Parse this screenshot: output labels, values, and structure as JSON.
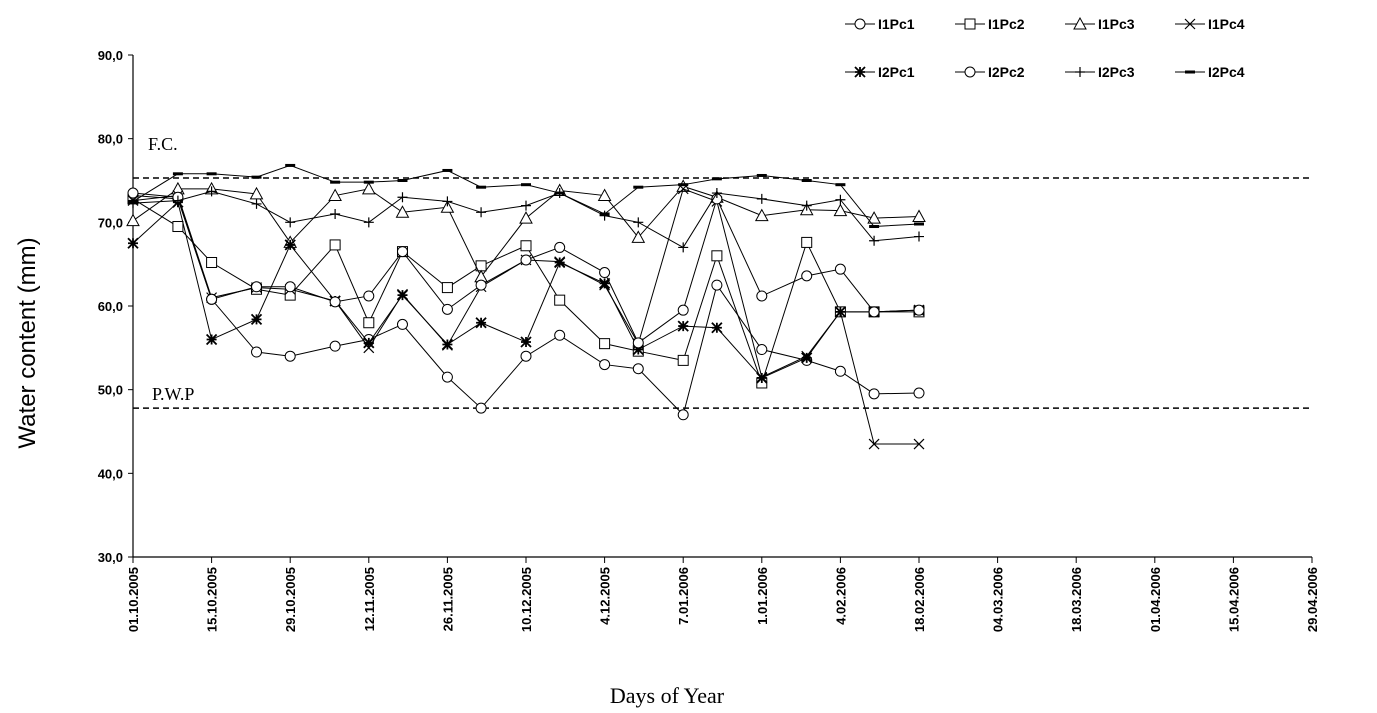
{
  "chart_data": {
    "type": "line",
    "title": "",
    "xlabel": "Days of Year",
    "ylabel": "Water content (mm)",
    "ylim": [
      30,
      90
    ],
    "yticks": [
      "30,0",
      "40,0",
      "50,0",
      "60,0",
      "70,0",
      "80,0",
      "90,0"
    ],
    "xticks": [
      "01.10.2005",
      "15.10.2005",
      "29.10.2005",
      "12.11.2005",
      "26.11.2005",
      "10.12.2005",
      "4.12.2005",
      "7.01.2006",
      "1.01.2006",
      "4.02.2006",
      "18.02.2006",
      "04.03.2006",
      "18.03.2006",
      "01.04.2006",
      "15.04.2006",
      "29.04.2006"
    ],
    "x_range_days": [
      0,
      210
    ],
    "x": [
      0,
      8,
      14,
      22,
      28,
      36,
      42,
      48,
      56,
      62,
      70,
      76,
      84,
      90,
      98,
      104,
      112,
      120,
      126,
      132,
      140,
      147,
      153,
      161,
      168,
      176,
      182
    ],
    "grid": false,
    "legend_position": "top-right",
    "reference_lines": [
      {
        "label": "F.C.",
        "value": 75.3
      },
      {
        "label": "P.W.P",
        "value": 47.8
      }
    ],
    "series": [
      {
        "name": "I1Pc1",
        "marker": "circle",
        "values": [
          73.2,
          72.8,
          60.8,
          54.5,
          54.0,
          55.2,
          56.0,
          57.8,
          51.5,
          47.8,
          54.0,
          56.5,
          53.0,
          52.5,
          47.0,
          62.5,
          54.8,
          53.5,
          52.2,
          49.5,
          49.6,
          null,
          null,
          null,
          null,
          null,
          null
        ]
      },
      {
        "name": "I1Pc2",
        "marker": "square",
        "values": [
          72.8,
          69.5,
          65.2,
          62.0,
          61.3,
          67.3,
          58.0,
          66.5,
          62.2,
          64.8,
          67.2,
          60.7,
          55.5,
          54.6,
          53.5,
          66.0,
          50.8,
          67.6,
          59.3,
          59.3,
          59.3,
          null,
          null,
          null,
          null,
          null,
          null
        ]
      },
      {
        "name": "I1Pc3",
        "marker": "triangle",
        "values": [
          70.2,
          74.0,
          74.0,
          73.4,
          67.6,
          73.2,
          74.0,
          71.2,
          71.8,
          63.5,
          70.5,
          73.8,
          73.2,
          68.2,
          74.3,
          73.0,
          70.8,
          71.5,
          71.4,
          70.5,
          70.7,
          null,
          null,
          null,
          null,
          null,
          null
        ]
      },
      {
        "name": "I1Pc4",
        "marker": "x",
        "values": [
          72.6,
          73.2,
          61.0,
          62.2,
          62.0,
          60.6,
          55.0,
          61.4,
          55.3,
          62.3,
          65.5,
          65.3,
          62.5,
          55.5,
          74.0,
          72.5,
          51.5,
          54.0,
          59.3,
          43.5,
          43.5,
          null,
          null,
          null,
          null,
          null,
          null
        ]
      },
      {
        "name": "I2Pc1",
        "marker": "asterisk",
        "values": [
          67.5,
          72.4,
          56.0,
          58.4,
          67.3,
          60.6,
          55.6,
          61.3,
          55.4,
          58.0,
          55.7,
          65.2,
          62.7,
          54.8,
          57.6,
          57.4,
          51.4,
          53.8,
          59.3,
          59.3,
          59.5,
          null,
          null,
          null,
          null,
          null,
          null
        ]
      },
      {
        "name": "I2Pc2",
        "marker": "circle",
        "values": [
          73.5,
          73.0,
          60.8,
          62.3,
          62.3,
          60.5,
          61.2,
          66.5,
          59.6,
          62.5,
          65.5,
          67.0,
          64.0,
          55.6,
          59.5,
          72.8,
          61.2,
          63.6,
          64.4,
          59.3,
          59.5,
          null,
          null,
          null,
          null,
          null,
          null
        ]
      },
      {
        "name": "I2Pc3",
        "marker": "plus",
        "values": [
          72.3,
          72.6,
          73.7,
          72.2,
          70.0,
          71.0,
          70.0,
          73.0,
          72.5,
          71.2,
          72.0,
          73.5,
          70.8,
          70.0,
          67.0,
          73.5,
          72.8,
          72.0,
          72.7,
          67.8,
          68.3,
          null,
          null,
          null,
          null,
          null,
          null
        ]
      },
      {
        "name": "I2Pc4",
        "marker": "dash",
        "values": [
          72.5,
          75.8,
          75.8,
          75.4,
          76.8,
          74.8,
          74.8,
          75.0,
          76.2,
          74.2,
          74.5,
          73.5,
          71.0,
          74.2,
          74.5,
          75.2,
          75.6,
          75.0,
          74.5,
          69.5,
          69.8,
          null,
          null,
          null,
          null,
          null,
          null
        ]
      }
    ]
  }
}
